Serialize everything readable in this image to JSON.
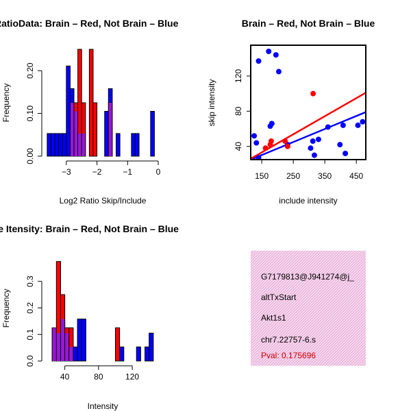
{
  "colors": {
    "red": "#ff0000",
    "blue": "#0000ff",
    "overlap": "#a020f0",
    "info_bg": "#f6dcef",
    "pval": "#cc0000"
  },
  "chart_data": [
    {
      "id": "ratio",
      "type": "bar",
      "title": "RatioData: Brain – Red, Not Brain – Blue",
      "xlabel": "Log2 Ratio Skip/Include",
      "ylabel": "Frequency",
      "xlim": [
        -3.6,
        0
      ],
      "ylim": [
        0,
        0.25
      ],
      "xticks": [
        -3,
        -2,
        -1,
        0
      ],
      "yticks": [
        0.0,
        0.1,
        0.2
      ],
      "ytick_labels": [
        "0.00",
        "0.10",
        "0.20"
      ],
      "bin_width": 0.125,
      "series": [
        {
          "name": "Not Brain",
          "color": "blue",
          "bins": [
            [
              -3.625,
              0.053
            ],
            [
              -3.5,
              0.053
            ],
            [
              -3.375,
              0.053
            ],
            [
              -3.25,
              0.053
            ],
            [
              -3.125,
              0.053
            ],
            [
              -3.0,
              0.211
            ],
            [
              -2.875,
              0.158
            ],
            [
              -2.75,
              0.105
            ],
            [
              -2.625,
              0.053
            ],
            [
              -2.5,
              0.053
            ],
            [
              -1.75,
              0.105
            ],
            [
              -1.625,
              0.158
            ],
            [
              -1.375,
              0.053
            ],
            [
              -0.875,
              0.053
            ],
            [
              -0.75,
              0.053
            ],
            [
              -0.25,
              0.105
            ]
          ]
        },
        {
          "name": "Brain",
          "color": "red",
          "bins": [
            [
              -2.875,
              0.125
            ],
            [
              -2.75,
              0.125
            ],
            [
              -2.625,
              0.25
            ],
            [
              -2.5,
              0.125
            ],
            [
              -2.25,
              0.25
            ],
            [
              -2.125,
              0.125
            ],
            [
              -1.625,
              0.125
            ]
          ]
        }
      ]
    },
    {
      "id": "scatter",
      "type": "scatter",
      "title": "Brain – Red, Not Brain – Blue",
      "xlabel": "include intensity",
      "ylabel": "skip intensity",
      "xlim": [
        115,
        480
      ],
      "ylim": [
        25,
        155
      ],
      "xticks": [
        150,
        250,
        350,
        450
      ],
      "yticks": [
        40,
        80,
        120
      ],
      "series": [
        {
          "name": "Not Brain",
          "color": "blue",
          "points": [
            [
              126,
              52
            ],
            [
              133,
              44
            ],
            [
              140,
              27
            ],
            [
              140,
              137
            ],
            [
              172,
              148
            ],
            [
              177,
              63
            ],
            [
              182,
              66
            ],
            [
              195,
              144
            ],
            [
              204,
              125
            ],
            [
              232,
              42
            ],
            [
              305,
              38
            ],
            [
              312,
              46
            ],
            [
              317,
              30
            ],
            [
              330,
              48
            ],
            [
              360,
              62
            ],
            [
              398,
              42
            ],
            [
              408,
              64
            ],
            [
              415,
              32
            ],
            [
              455,
              64
            ],
            [
              470,
              68
            ]
          ],
          "fit": [
            [
              115,
              25
            ],
            [
              480,
              79
            ]
          ]
        },
        {
          "name": "Brain",
          "color": "red",
          "points": [
            [
              162,
              38
            ],
            [
              177,
              42
            ],
            [
              180,
              46
            ],
            [
              224,
              46
            ],
            [
              232,
              40
            ],
            [
              313,
              100
            ]
          ],
          "fit": [
            [
              115,
              26
            ],
            [
              480,
              101
            ]
          ]
        }
      ]
    },
    {
      "id": "intensity",
      "type": "bar",
      "title": "Gene Itensity: Brain – Red, Not Brain – Blue",
      "xlabel": "Intensity",
      "ylabel": "Frequency",
      "xlim": [
        20,
        150
      ],
      "ylim": [
        0,
        0.4
      ],
      "xticks": [
        40,
        80,
        120
      ],
      "yticks": [
        0.0,
        0.1,
        0.2,
        0.3
      ],
      "ytick_labels": [
        "0.0",
        "0.1",
        "0.2",
        "0.3"
      ],
      "bin_width": 5,
      "series": [
        {
          "name": "Not Brain",
          "color": "blue",
          "bins": [
            [
              25,
              0.125
            ],
            [
              30,
              0.105
            ],
            [
              35,
              0.158
            ],
            [
              40,
              0.105
            ],
            [
              45,
              0.053
            ],
            [
              50,
              0.053
            ],
            [
              55,
              0.158
            ],
            [
              60,
              0.158
            ],
            [
              105,
              0.053
            ],
            [
              125,
              0.053
            ],
            [
              135,
              0.053
            ],
            [
              140,
              0.105
            ]
          ]
        },
        {
          "name": "Brain",
          "color": "red",
          "bins": [
            [
              25,
              0.125
            ],
            [
              30,
              0.375
            ],
            [
              35,
              0.25
            ],
            [
              40,
              0.125
            ],
            [
              45,
              0.125
            ],
            [
              100,
              0.125
            ]
          ]
        }
      ]
    }
  ],
  "info": {
    "id": "G7179813@J941274@j_",
    "event": "altTxStart",
    "gene": "Akt1s1",
    "location": "chr7.22757-6.s",
    "pval": "Pval: 0.175696"
  }
}
